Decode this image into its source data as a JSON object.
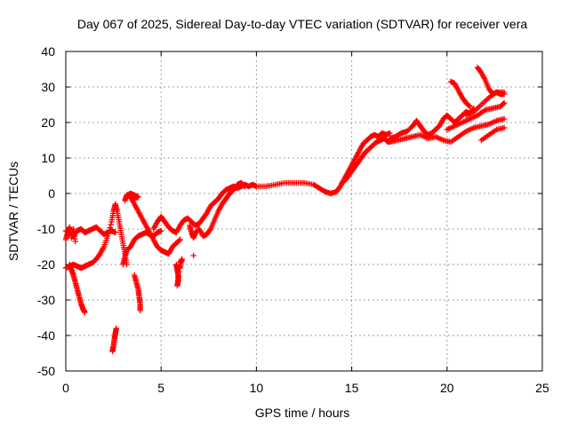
{
  "chart_data": {
    "type": "scatter",
    "title": "Day 067 of 2025, Sidereal Day-to-day VTEC variation (SDTVAR) for receiver vera",
    "xlabel": "GPS time / hours",
    "ylabel": "SDTVAR / TECUs",
    "xlim": [
      0,
      25
    ],
    "ylim": [
      -50,
      40
    ],
    "xticks": [
      0,
      5,
      10,
      15,
      20,
      25
    ],
    "yticks": [
      -50,
      -40,
      -30,
      -20,
      -10,
      0,
      10,
      20,
      30,
      40
    ],
    "grid": true,
    "marker": "+",
    "color": "#ff0000",
    "series": [
      {
        "name": "track-a",
        "points": [
          [
            0.0,
            -10.5
          ],
          [
            0.2,
            -11.0
          ],
          [
            0.4,
            -12.0
          ],
          [
            0.6,
            -10.5
          ],
          [
            0.8,
            -10.0
          ],
          [
            1.0,
            -11.0
          ],
          [
            1.2,
            -10.5
          ],
          [
            1.4,
            -10.0
          ],
          [
            1.6,
            -9.5
          ],
          [
            1.8,
            -10.5
          ],
          [
            2.0,
            -11.5
          ],
          [
            2.2,
            -11.0
          ],
          [
            2.4,
            -10.5
          ],
          [
            2.6,
            -11.0
          ]
        ]
      },
      {
        "name": "track-b",
        "points": [
          [
            0.0,
            -13.0
          ],
          [
            0.1,
            -11.0
          ],
          [
            0.2,
            -9.5
          ],
          [
            0.3,
            -12.5
          ],
          [
            0.4,
            -10.0
          ],
          [
            0.5,
            -13.5
          ]
        ]
      },
      {
        "name": "track-c",
        "points": [
          [
            0.0,
            -21.0
          ],
          [
            0.2,
            -20.5
          ],
          [
            0.4,
            -20.0
          ],
          [
            0.6,
            -20.5
          ],
          [
            0.8,
            -21.0
          ],
          [
            1.0,
            -20.5
          ],
          [
            1.2,
            -20.0
          ],
          [
            1.4,
            -19.5
          ],
          [
            1.6,
            -18.5
          ],
          [
            1.8,
            -17.0
          ],
          [
            2.0,
            -15.0
          ],
          [
            2.2,
            -12.0
          ],
          [
            2.4,
            -8.0
          ],
          [
            2.5,
            -5.0
          ],
          [
            2.6,
            -3.0
          ]
        ]
      },
      {
        "name": "track-d",
        "points": [
          [
            0.2,
            -20.0
          ],
          [
            0.3,
            -21.5
          ],
          [
            0.4,
            -23.0
          ],
          [
            0.5,
            -25.0
          ],
          [
            0.6,
            -27.0
          ],
          [
            0.7,
            -29.0
          ],
          [
            0.8,
            -31.0
          ],
          [
            0.9,
            -32.5
          ],
          [
            1.0,
            -33.5
          ]
        ]
      },
      {
        "name": "track-e",
        "points": [
          [
            2.45,
            -44.5
          ],
          [
            2.5,
            -43.0
          ],
          [
            2.55,
            -41.0
          ],
          [
            2.6,
            -39.5
          ],
          [
            2.65,
            -38.0
          ]
        ]
      },
      {
        "name": "track-f",
        "points": [
          [
            3.0,
            -20.0
          ],
          [
            3.1,
            -18.0
          ],
          [
            3.2,
            -16.0
          ],
          [
            3.4,
            -15.0
          ],
          [
            3.6,
            -13.0
          ],
          [
            3.8,
            -12.0
          ],
          [
            4.0,
            -11.5
          ],
          [
            4.2,
            -11.0
          ],
          [
            4.4,
            -11.5
          ],
          [
            4.6,
            -12.0
          ],
          [
            4.8,
            -11.0
          ],
          [
            5.0,
            -10.5
          ]
        ]
      },
      {
        "name": "track-g",
        "points": [
          [
            3.1,
            -2.0
          ],
          [
            3.2,
            -0.5
          ],
          [
            3.4,
            0.0
          ],
          [
            3.6,
            -0.5
          ],
          [
            3.8,
            -1.0
          ],
          [
            3.5,
            -1.5
          ],
          [
            3.3,
            -0.5
          ]
        ]
      },
      {
        "name": "track-h",
        "points": [
          [
            2.6,
            -3.0
          ],
          [
            2.7,
            -5.0
          ],
          [
            2.8,
            -8.0
          ],
          [
            2.9,
            -11.0
          ],
          [
            3.0,
            -14.0
          ],
          [
            3.1,
            -17.0
          ],
          [
            3.2,
            -20.0
          ]
        ]
      },
      {
        "name": "track-i",
        "points": [
          [
            3.6,
            -23.0
          ],
          [
            3.7,
            -25.0
          ],
          [
            3.8,
            -27.0
          ],
          [
            3.85,
            -29.0
          ],
          [
            3.9,
            -31.0
          ],
          [
            3.9,
            -33.0
          ]
        ]
      },
      {
        "name": "track-j",
        "points": [
          [
            3.4,
            -1.0
          ],
          [
            3.6,
            -3.0
          ],
          [
            3.8,
            -5.0
          ],
          [
            4.0,
            -7.0
          ],
          [
            4.2,
            -9.0
          ],
          [
            4.4,
            -11.0
          ],
          [
            4.6,
            -13.0
          ],
          [
            4.8,
            -15.0
          ],
          [
            5.0,
            -16.0
          ],
          [
            5.2,
            -16.5
          ],
          [
            5.4,
            -17.0
          ],
          [
            5.6,
            -15.0
          ],
          [
            5.8,
            -14.0
          ],
          [
            6.0,
            -13.0
          ]
        ]
      },
      {
        "name": "track-k",
        "points": [
          [
            4.6,
            -10.0
          ],
          [
            4.8,
            -8.0
          ],
          [
            5.0,
            -6.5
          ],
          [
            5.2,
            -8.0
          ],
          [
            5.4,
            -9.5
          ],
          [
            5.6,
            -10.5
          ],
          [
            5.8,
            -11.0
          ],
          [
            6.0,
            -9.0
          ],
          [
            6.2,
            -7.5
          ],
          [
            6.4,
            -7.0
          ],
          [
            6.6,
            -8.0
          ],
          [
            6.8,
            -9.0
          ],
          [
            7.0,
            -8.5
          ],
          [
            7.2,
            -7.0
          ],
          [
            7.4,
            -5.5
          ],
          [
            7.6,
            -3.5
          ],
          [
            7.8,
            -2.5
          ],
          [
            8.0,
            -1.5
          ],
          [
            8.2,
            0.0
          ],
          [
            8.4,
            1.0
          ],
          [
            8.6,
            1.5
          ],
          [
            8.8,
            2.0
          ],
          [
            9.0,
            1.5
          ],
          [
            9.2,
            2.0
          ],
          [
            9.4,
            2.5
          ],
          [
            9.6,
            2.0
          ],
          [
            9.8,
            2.5
          ],
          [
            10.0,
            2.0
          ]
        ]
      },
      {
        "name": "track-l",
        "points": [
          [
            5.8,
            -20.0
          ],
          [
            5.85,
            -21.5
          ],
          [
            5.9,
            -23.0
          ],
          [
            5.9,
            -24.5
          ],
          [
            5.85,
            -26.0
          ],
          [
            6.0,
            -19.5
          ],
          [
            6.1,
            -18.5
          ],
          [
            6.0,
            -21.0
          ]
        ]
      },
      {
        "name": "track-m",
        "points": [
          [
            6.7,
            -17.5
          ]
        ]
      },
      {
        "name": "track-n",
        "points": [
          [
            6.5,
            -9.0
          ],
          [
            6.6,
            -11.0
          ],
          [
            6.7,
            -12.5
          ],
          [
            6.8,
            -11.0
          ],
          [
            7.0,
            -10.0
          ],
          [
            7.2,
            -12.0
          ],
          [
            7.4,
            -11.5
          ],
          [
            7.6,
            -10.0
          ],
          [
            7.8,
            -7.5
          ],
          [
            8.0,
            -5.0
          ],
          [
            8.2,
            -3.0
          ],
          [
            8.4,
            -1.5
          ],
          [
            8.6,
            0.0
          ],
          [
            8.8,
            1.0
          ],
          [
            9.0,
            2.5
          ],
          [
            9.2,
            3.0
          ],
          [
            9.4,
            2.0
          ]
        ]
      },
      {
        "name": "track-o",
        "points": [
          [
            10.0,
            2.0
          ],
          [
            10.5,
            2.0
          ],
          [
            11.0,
            2.5
          ],
          [
            11.5,
            3.0
          ],
          [
            12.0,
            3.0
          ],
          [
            12.5,
            3.0
          ],
          [
            13.0,
            2.5
          ],
          [
            13.3,
            1.5
          ],
          [
            13.6,
            0.5
          ],
          [
            13.9,
            0.0
          ],
          [
            14.2,
            0.5
          ],
          [
            14.4,
            2.0
          ],
          [
            14.6,
            4.0
          ],
          [
            14.8,
            6.0
          ],
          [
            15.0,
            8.0
          ],
          [
            15.2,
            10.0
          ],
          [
            15.4,
            12.0
          ],
          [
            15.6,
            14.0
          ],
          [
            15.8,
            15.0
          ],
          [
            16.0,
            16.0
          ],
          [
            16.2,
            16.5
          ],
          [
            16.4,
            16.0
          ],
          [
            16.6,
            17.0
          ],
          [
            16.8,
            16.5
          ],
          [
            17.0,
            17.0
          ]
        ]
      },
      {
        "name": "track-p",
        "points": [
          [
            14.5,
            3.0
          ],
          [
            14.7,
            4.0
          ],
          [
            14.9,
            5.5
          ],
          [
            15.1,
            7.0
          ],
          [
            15.3,
            8.5
          ],
          [
            15.5,
            10.0
          ],
          [
            15.7,
            11.5
          ],
          [
            15.9,
            12.5
          ],
          [
            16.1,
            13.5
          ],
          [
            16.3,
            14.5
          ],
          [
            16.5,
            15.0
          ],
          [
            16.7,
            15.5
          ],
          [
            16.9,
            14.5
          ],
          [
            17.1,
            15.0
          ]
        ]
      },
      {
        "name": "track-q",
        "points": [
          [
            17.0,
            15.5
          ],
          [
            17.3,
            16.0
          ],
          [
            17.6,
            17.0
          ],
          [
            17.9,
            17.5
          ],
          [
            18.2,
            19.0
          ],
          [
            18.4,
            20.5
          ],
          [
            18.6,
            19.0
          ],
          [
            18.8,
            17.5
          ],
          [
            19.0,
            16.5
          ],
          [
            19.2,
            17.0
          ],
          [
            19.4,
            18.0
          ],
          [
            19.6,
            19.0
          ],
          [
            19.8,
            21.0
          ],
          [
            20.0,
            22.0
          ],
          [
            20.2,
            21.0
          ],
          [
            20.4,
            20.0
          ],
          [
            20.6,
            21.0
          ],
          [
            20.8,
            22.0
          ],
          [
            21.0,
            23.0
          ],
          [
            21.2,
            22.5
          ],
          [
            21.4,
            24.0
          ]
        ]
      },
      {
        "name": "track-r",
        "points": [
          [
            17.0,
            14.5
          ],
          [
            17.4,
            15.0
          ],
          [
            17.8,
            15.5
          ],
          [
            18.2,
            16.0
          ],
          [
            18.6,
            16.5
          ],
          [
            19.0,
            15.5
          ],
          [
            19.4,
            16.0
          ],
          [
            19.8,
            15.0
          ],
          [
            20.2,
            14.5
          ],
          [
            20.6,
            16.0
          ],
          [
            21.0,
            17.5
          ],
          [
            21.4,
            18.5
          ],
          [
            21.8,
            19.0
          ],
          [
            22.2,
            19.5
          ],
          [
            22.6,
            20.5
          ],
          [
            23.0,
            21.0
          ]
        ]
      },
      {
        "name": "track-s",
        "points": [
          [
            20.0,
            18.0
          ],
          [
            20.4,
            19.0
          ],
          [
            20.8,
            20.0
          ],
          [
            21.2,
            21.0
          ],
          [
            21.6,
            22.0
          ],
          [
            22.0,
            23.5
          ],
          [
            22.4,
            24.0
          ],
          [
            22.8,
            24.5
          ],
          [
            23.0,
            25.5
          ]
        ]
      },
      {
        "name": "track-t",
        "points": [
          [
            20.2,
            31.5
          ],
          [
            20.4,
            31.0
          ],
          [
            20.6,
            29.0
          ],
          [
            20.8,
            27.0
          ],
          [
            21.0,
            25.5
          ],
          [
            21.2,
            24.5
          ]
        ]
      },
      {
        "name": "track-u",
        "points": [
          [
            21.6,
            35.5
          ],
          [
            21.8,
            34.0
          ],
          [
            22.0,
            32.0
          ],
          [
            22.2,
            29.5
          ],
          [
            22.4,
            28.0
          ],
          [
            22.6,
            28.5
          ],
          [
            22.8,
            28.0
          ],
          [
            23.0,
            28.0
          ]
        ]
      },
      {
        "name": "track-v",
        "points": [
          [
            21.0,
            22.0
          ],
          [
            21.4,
            23.0
          ],
          [
            21.8,
            25.0
          ],
          [
            22.2,
            27.0
          ],
          [
            22.6,
            28.5
          ],
          [
            23.0,
            28.5
          ]
        ]
      },
      {
        "name": "track-w",
        "points": [
          [
            21.8,
            15.0
          ],
          [
            22.2,
            16.5
          ],
          [
            22.6,
            18.0
          ],
          [
            23.0,
            18.5
          ]
        ]
      }
    ]
  }
}
